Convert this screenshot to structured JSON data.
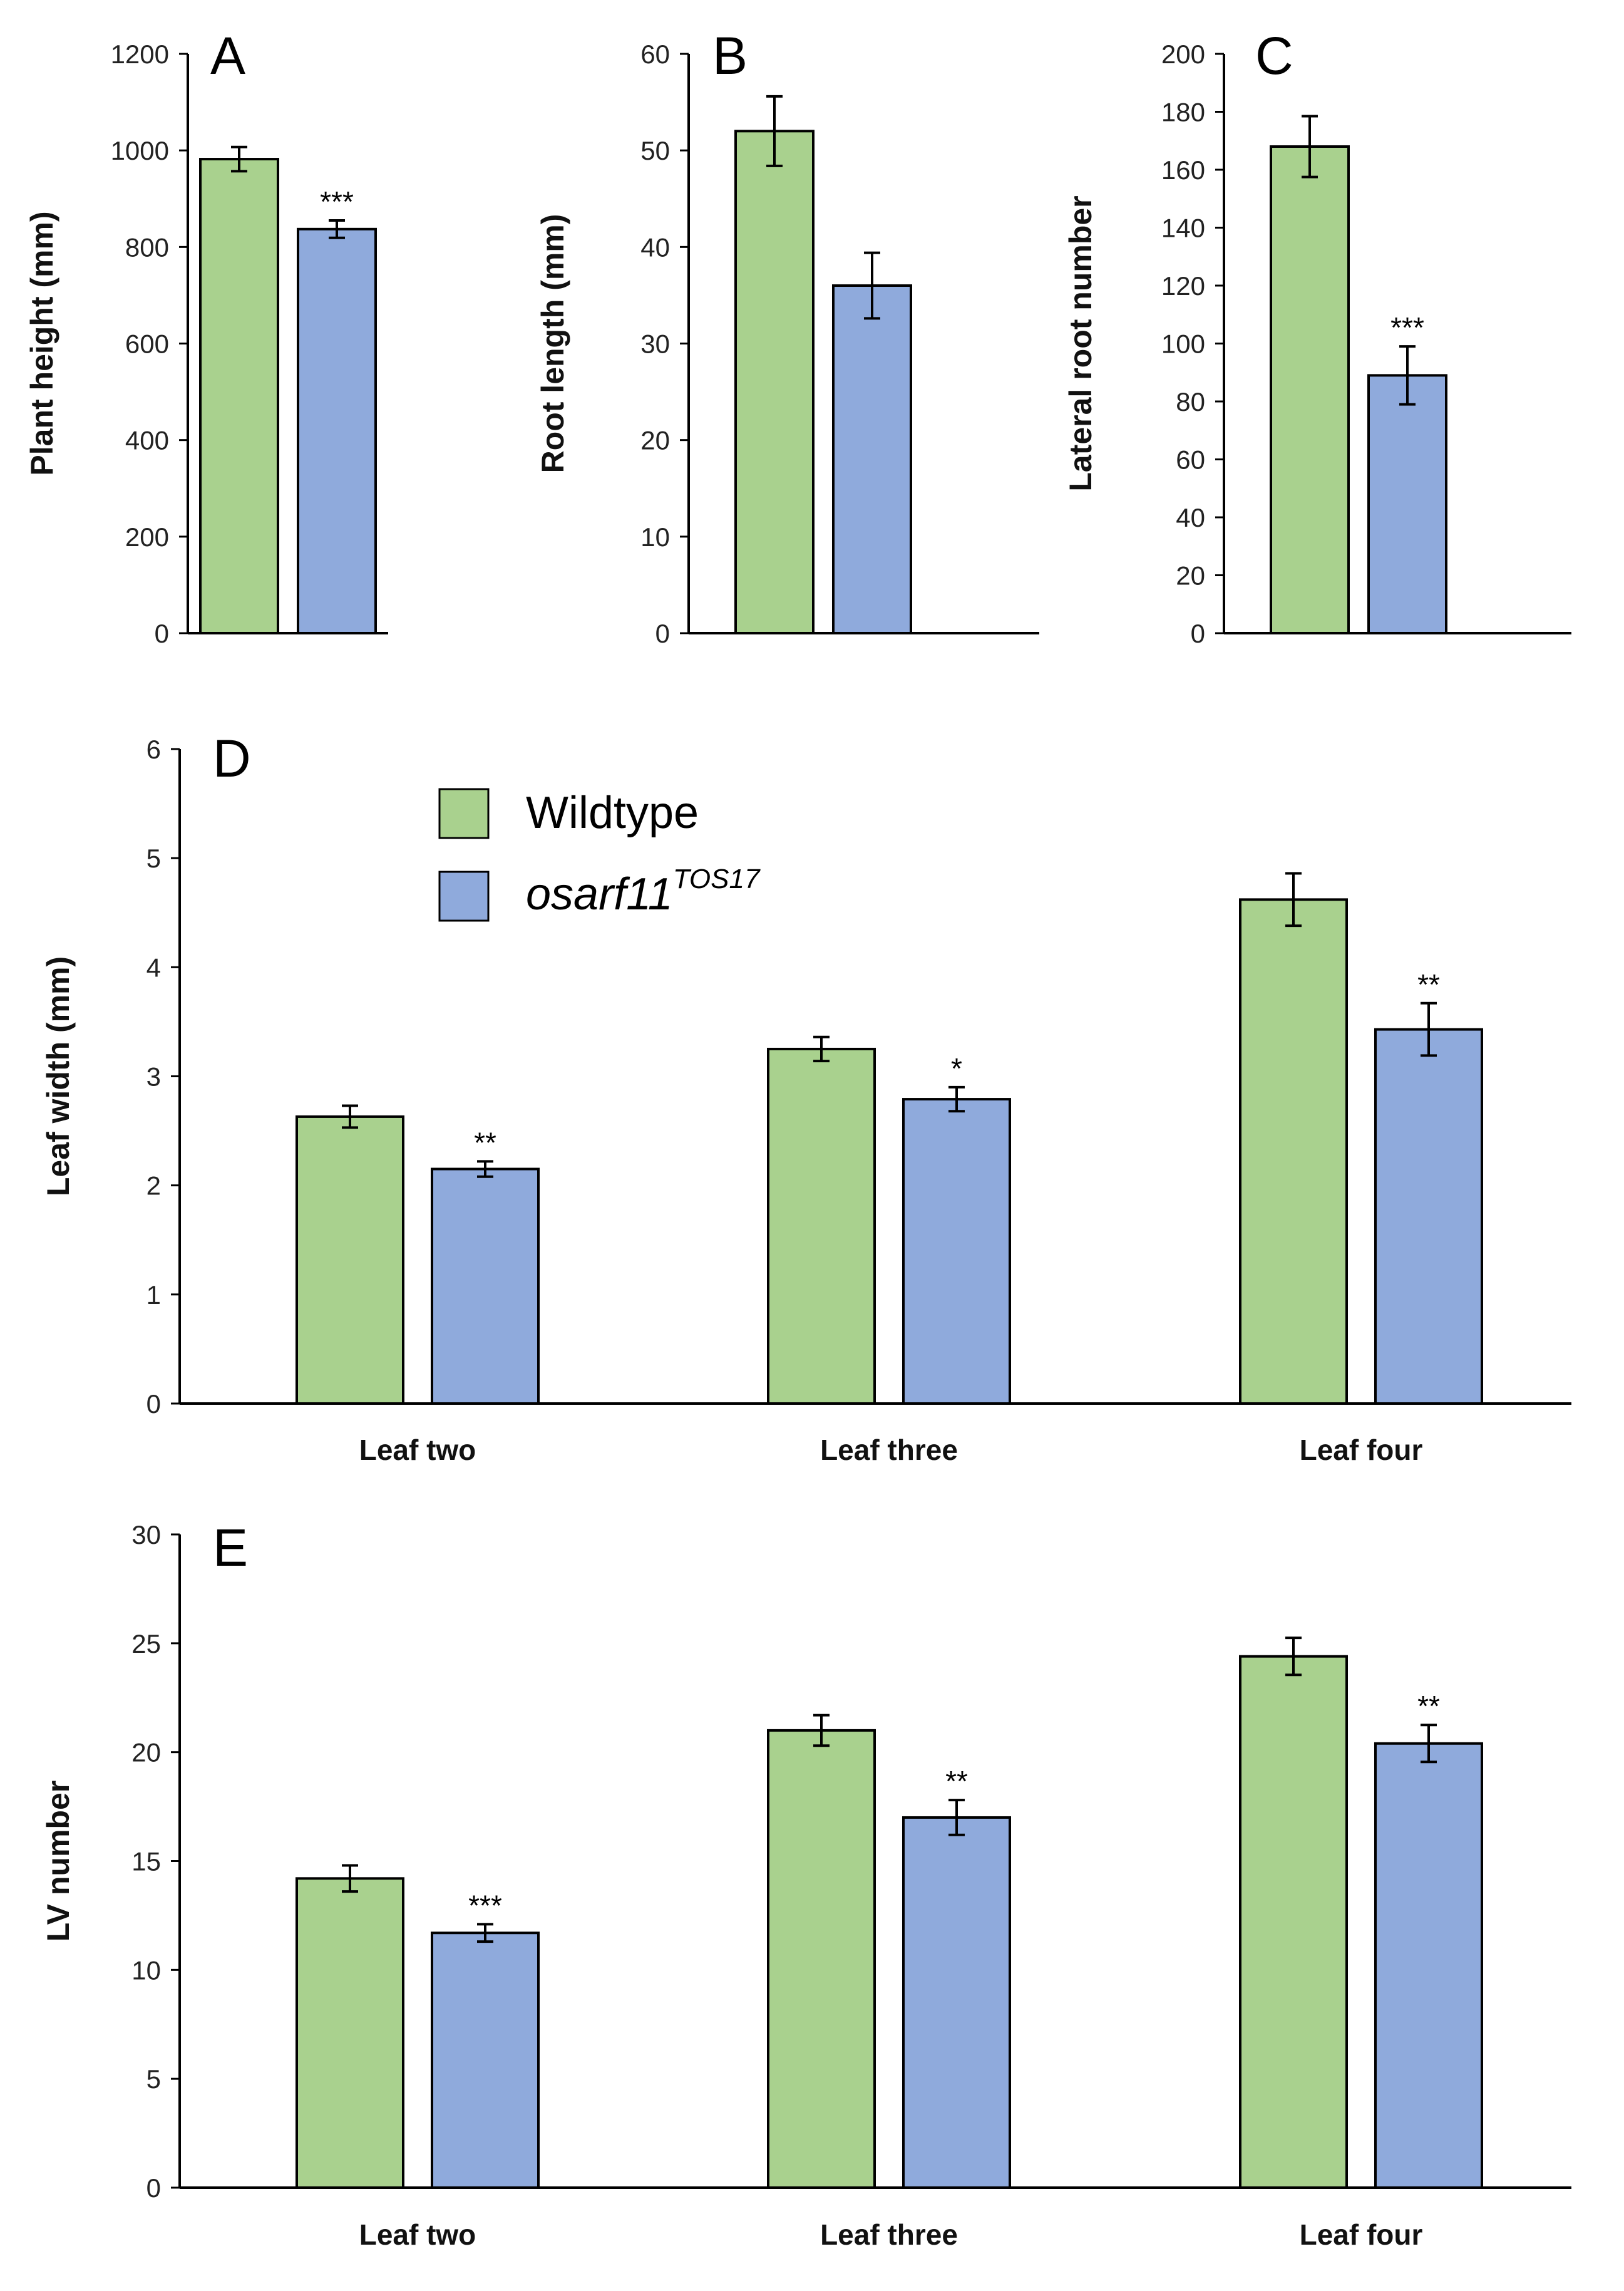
{
  "colors": {
    "wildtype": "#A9D18E",
    "mutant": "#8FAADC",
    "axis": "#000000"
  },
  "legend": {
    "wildtype_label": "Wildtype",
    "mutant_label": "osarf11",
    "mutant_superscript": "TOS17"
  },
  "chart_data": [
    {
      "panel": "A",
      "type": "bar",
      "title": "",
      "xlabel": "",
      "ylabel": "Plant height (mm)",
      "ylim": [
        0,
        1200
      ],
      "yticks": [
        "0",
        "200",
        "400",
        "600",
        "800",
        "1000",
        "1200"
      ],
      "categories": [
        ""
      ],
      "series": [
        {
          "name": "Wildtype",
          "values": [
            982
          ],
          "errors": [
            25
          ],
          "sig": [
            ""
          ]
        },
        {
          "name": "osarf11TOS17",
          "values": [
            837
          ],
          "errors": [
            18
          ],
          "sig": [
            "***"
          ]
        }
      ]
    },
    {
      "panel": "B",
      "type": "bar",
      "title": "",
      "xlabel": "",
      "ylabel": "Root length (mm)",
      "ylim": [
        0,
        60
      ],
      "yticks": [
        "0",
        "10",
        "20",
        "30",
        "40",
        "50",
        "60"
      ],
      "categories": [
        ""
      ],
      "series": [
        {
          "name": "Wildtype",
          "values": [
            52
          ],
          "errors": [
            3.6
          ],
          "sig": [
            ""
          ]
        },
        {
          "name": "osarf11TOS17",
          "values": [
            36
          ],
          "errors": [
            3.4
          ],
          "sig": [
            ""
          ]
        }
      ]
    },
    {
      "panel": "C",
      "type": "bar",
      "title": "",
      "xlabel": "",
      "ylabel": "Lateral root number",
      "ylim": [
        0,
        200
      ],
      "yticks": [
        "0",
        "20",
        "40",
        "60",
        "80",
        "100",
        "120",
        "140",
        "160",
        "180",
        "200"
      ],
      "categories": [
        ""
      ],
      "series": [
        {
          "name": "Wildtype",
          "values": [
            168
          ],
          "errors": [
            10.5
          ],
          "sig": [
            ""
          ]
        },
        {
          "name": "osarf11TOS17",
          "values": [
            89
          ],
          "errors": [
            10
          ],
          "sig": [
            "***"
          ]
        }
      ]
    },
    {
      "panel": "D",
      "type": "bar",
      "title": "",
      "xlabel": "",
      "ylabel": "Leaf width (mm)",
      "ylim": [
        0,
        6
      ],
      "yticks": [
        "0",
        "1",
        "2",
        "3",
        "4",
        "5",
        "6"
      ],
      "categories": [
        "Leaf two",
        "Leaf three",
        "Leaf four"
      ],
      "series": [
        {
          "name": "Wildtype",
          "values": [
            2.63,
            3.25,
            4.62
          ],
          "errors": [
            0.1,
            0.11,
            0.24
          ],
          "sig": [
            "",
            "",
            ""
          ]
        },
        {
          "name": "osarf11TOS17",
          "values": [
            2.15,
            2.79,
            3.43
          ],
          "errors": [
            0.07,
            0.11,
            0.24
          ],
          "sig": [
            "**",
            "*",
            "**"
          ]
        }
      ]
    },
    {
      "panel": "E",
      "type": "bar",
      "title": "",
      "xlabel": "",
      "ylabel": "LV number",
      "ylim": [
        0,
        30
      ],
      "yticks": [
        "0",
        "5",
        "10",
        "15",
        "20",
        "25",
        "30"
      ],
      "categories": [
        "Leaf two",
        "Leaf three",
        "Leaf four"
      ],
      "series": [
        {
          "name": "Wildtype",
          "values": [
            14.2,
            21,
            24.4
          ],
          "errors": [
            0.6,
            0.7,
            0.85
          ],
          "sig": [
            "",
            "",
            ""
          ]
        },
        {
          "name": "osarf11TOS17",
          "values": [
            11.7,
            17,
            20.4
          ],
          "errors": [
            0.4,
            0.8,
            0.85
          ],
          "sig": [
            "***",
            "**",
            "**"
          ]
        }
      ]
    }
  ]
}
